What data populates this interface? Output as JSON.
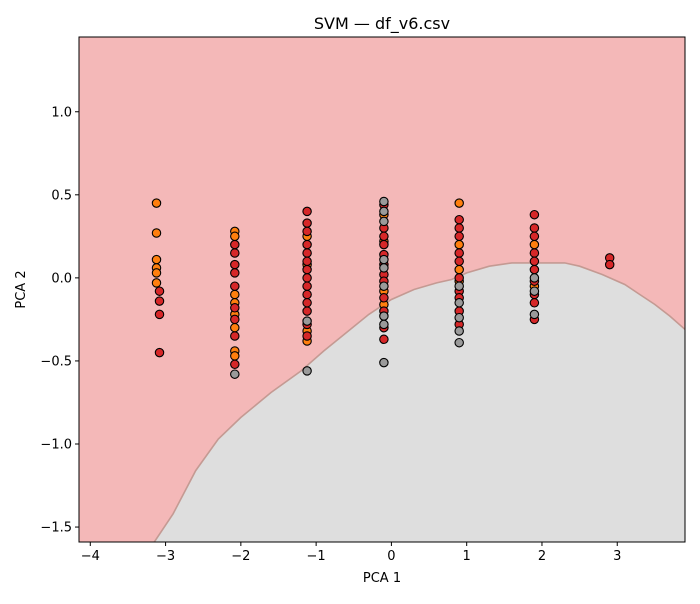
{
  "chart_data": {
    "type": "scatter",
    "title": "SVM — df_v6.csv",
    "xlabel": "PCA 1",
    "ylabel": "PCA 2",
    "xlim": [
      -4.15,
      3.9
    ],
    "ylim": [
      -1.59,
      1.45
    ],
    "xticks": [
      -4,
      -3,
      -2,
      -1,
      0,
      1,
      2,
      3
    ],
    "yticks": [
      -1.5,
      -1.0,
      -0.5,
      0.0,
      0.5,
      1.0
    ],
    "xtick_labels": [
      "−4",
      "−3",
      "−2",
      "−1",
      "0",
      "1",
      "2",
      "3"
    ],
    "ytick_labels": [
      "−1.5",
      "−1.0",
      "−0.5",
      "0.0",
      "0.5",
      "1.0"
    ],
    "grid": false,
    "legend": "none",
    "regions": {
      "upper_color": "#f4b8b8",
      "lower_color": "#dedede",
      "boundary_color": "#c49a93",
      "decision_boundary": [
        [
          -3.15,
          -1.59
        ],
        [
          -2.9,
          -1.42
        ],
        [
          -2.6,
          -1.16
        ],
        [
          -2.3,
          -0.97
        ],
        [
          -2.0,
          -0.84
        ],
        [
          -1.6,
          -0.69
        ],
        [
          -1.2,
          -0.56
        ],
        [
          -0.9,
          -0.44
        ],
        [
          -0.6,
          -0.33
        ],
        [
          -0.3,
          -0.22
        ],
        [
          0.0,
          -0.13
        ],
        [
          0.3,
          -0.07
        ],
        [
          0.6,
          -0.03
        ],
        [
          0.8,
          -0.01
        ],
        [
          1.0,
          0.03
        ],
        [
          1.3,
          0.07
        ],
        [
          1.6,
          0.09
        ],
        [
          2.0,
          0.09
        ],
        [
          2.3,
          0.09
        ],
        [
          2.5,
          0.07
        ],
        [
          2.8,
          0.02
        ],
        [
          3.1,
          -0.04
        ],
        [
          3.3,
          -0.1
        ],
        [
          3.5,
          -0.16
        ],
        [
          3.7,
          -0.23
        ],
        [
          3.9,
          -0.31
        ]
      ]
    },
    "series": [
      {
        "color": "#ff7f0e",
        "points": [
          [
            -3.12,
            0.45
          ],
          [
            -3.12,
            0.27
          ],
          [
            -3.12,
            0.11
          ],
          [
            -3.12,
            0.06
          ],
          [
            -3.12,
            0.03
          ],
          [
            -3.12,
            -0.03
          ],
          [
            -2.08,
            0.28
          ],
          [
            -2.08,
            0.25
          ],
          [
            -2.08,
            -0.1
          ],
          [
            -2.08,
            -0.15
          ],
          [
            -2.08,
            -0.22
          ],
          [
            -2.08,
            -0.3
          ],
          [
            -2.08,
            -0.44
          ],
          [
            -2.08,
            -0.47
          ],
          [
            -1.12,
            0.25
          ],
          [
            -1.12,
            0.08
          ],
          [
            -1.12,
            -0.32
          ],
          [
            -1.12,
            -0.38
          ],
          [
            -0.1,
            0.38
          ],
          [
            -0.1,
            0.22
          ],
          [
            -0.1,
            -0.08
          ],
          [
            -0.1,
            -0.16
          ],
          [
            0.9,
            0.45
          ],
          [
            0.9,
            0.2
          ],
          [
            0.9,
            0.05
          ],
          [
            0.9,
            -0.02
          ],
          [
            1.9,
            0.2
          ],
          [
            1.9,
            -0.05
          ]
        ]
      },
      {
        "color": "#d62728",
        "points": [
          [
            -3.08,
            -0.08
          ],
          [
            -3.08,
            -0.14
          ],
          [
            -3.08,
            -0.22
          ],
          [
            -3.08,
            -0.45
          ],
          [
            -2.08,
            0.2
          ],
          [
            -2.08,
            0.15
          ],
          [
            -2.08,
            0.08
          ],
          [
            -2.08,
            0.03
          ],
          [
            -2.08,
            -0.05
          ],
          [
            -2.08,
            -0.18
          ],
          [
            -2.08,
            -0.25
          ],
          [
            -2.08,
            -0.35
          ],
          [
            -2.08,
            -0.52
          ],
          [
            -1.12,
            0.4
          ],
          [
            -1.12,
            0.33
          ],
          [
            -1.12,
            0.28
          ],
          [
            -1.12,
            0.2
          ],
          [
            -1.12,
            0.15
          ],
          [
            -1.12,
            0.1
          ],
          [
            -1.12,
            0.05
          ],
          [
            -1.12,
            0.0
          ],
          [
            -1.12,
            -0.05
          ],
          [
            -1.12,
            -0.1
          ],
          [
            -1.12,
            -0.15
          ],
          [
            -1.12,
            -0.2
          ],
          [
            -1.12,
            -0.28
          ],
          [
            -1.12,
            -0.35
          ],
          [
            -0.1,
            0.44
          ],
          [
            -0.1,
            0.3
          ],
          [
            -0.1,
            0.25
          ],
          [
            -0.1,
            0.2
          ],
          [
            -0.1,
            0.14
          ],
          [
            -0.1,
            0.08
          ],
          [
            -0.1,
            0.02
          ],
          [
            -0.1,
            -0.02
          ],
          [
            -0.1,
            -0.12
          ],
          [
            -0.1,
            -0.2
          ],
          [
            -0.1,
            -0.3
          ],
          [
            -0.1,
            -0.37
          ],
          [
            0.9,
            0.35
          ],
          [
            0.9,
            0.3
          ],
          [
            0.9,
            0.25
          ],
          [
            0.9,
            0.15
          ],
          [
            0.9,
            0.1
          ],
          [
            0.9,
            0.0
          ],
          [
            0.9,
            -0.08
          ],
          [
            0.9,
            -0.12
          ],
          [
            0.9,
            -0.2
          ],
          [
            0.9,
            -0.28
          ],
          [
            1.9,
            0.38
          ],
          [
            1.9,
            0.3
          ],
          [
            1.9,
            0.25
          ],
          [
            1.9,
            0.15
          ],
          [
            1.9,
            0.1
          ],
          [
            1.9,
            0.05
          ],
          [
            1.9,
            -0.02
          ],
          [
            1.9,
            -0.1
          ],
          [
            1.9,
            -0.15
          ],
          [
            1.9,
            -0.25
          ],
          [
            2.9,
            0.12
          ],
          [
            2.9,
            0.08
          ]
        ]
      },
      {
        "color": "#9a9a9a",
        "points": [
          [
            -2.08,
            -0.58
          ],
          [
            -1.12,
            -0.26
          ],
          [
            -1.12,
            -0.56
          ],
          [
            -0.1,
            0.46
          ],
          [
            -0.1,
            0.4
          ],
          [
            -0.1,
            0.34
          ],
          [
            -0.1,
            0.11
          ],
          [
            -0.1,
            0.06
          ],
          [
            -0.1,
            -0.05
          ],
          [
            -0.1,
            -0.23
          ],
          [
            -0.1,
            -0.28
          ],
          [
            -0.1,
            -0.51
          ],
          [
            0.9,
            -0.05
          ],
          [
            0.9,
            -0.15
          ],
          [
            0.9,
            -0.24
          ],
          [
            0.9,
            -0.32
          ],
          [
            0.9,
            -0.39
          ],
          [
            1.9,
            0.0
          ],
          [
            1.9,
            -0.08
          ],
          [
            1.9,
            -0.22
          ]
        ]
      }
    ]
  }
}
